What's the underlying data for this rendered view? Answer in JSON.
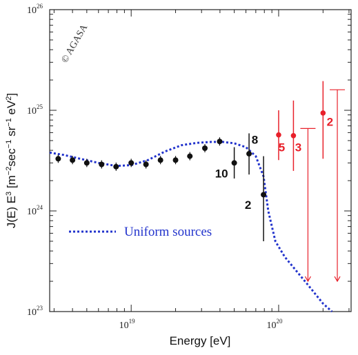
{
  "chart_data": {
    "type": "scatter",
    "title": "",
    "xlabel": "Energy [eV]",
    "ylabel_parts": [
      "J(E) E",
      "3",
      " [m",
      "−2",
      "sec",
      "−1",
      " sr",
      "−1",
      " eV",
      "2",
      "]"
    ],
    "log_x": true,
    "log_y": true,
    "xlim": [
      2.8e+18,
      3.1e+20
    ],
    "ylim": [
      1e+23,
      1e+26
    ],
    "x_ticks": [
      {
        "value": 1e+19,
        "base": "10",
        "exp": "19"
      },
      {
        "value": 1e+20,
        "base": "10",
        "exp": "20"
      }
    ],
    "y_ticks": [
      {
        "value": 1e+23,
        "base": "10",
        "exp": "23"
      },
      {
        "value": 1e+24,
        "base": "10",
        "exp": "24"
      },
      {
        "value": 1e+25,
        "base": "10",
        "exp": "25"
      },
      {
        "value": 1e+26,
        "base": "10",
        "exp": "26"
      }
    ],
    "watermark": "© AGASA",
    "legend_label": "Uniform sources",
    "colors": {
      "data": "#111111",
      "above_gzk": "#e8202a",
      "model": "#2233cc"
    },
    "series": [
      {
        "name": "",
        "color": "#111111",
        "points": [
          {
            "x": 3.2e+18,
            "y": 3.3e+24
          },
          {
            "x": 4e+18,
            "y": 3.2e+24
          },
          {
            "x": 5e+18,
            "y": 3e+24
          },
          {
            "x": 6.3e+18,
            "y": 2.9e+24
          },
          {
            "x": 7.9e+18,
            "y": 2.75e+24
          },
          {
            "x": 1e+19,
            "y": 3e+24
          },
          {
            "x": 1.26e+19,
            "y": 2.9e+24
          },
          {
            "x": 1.58e+19,
            "y": 3.2e+24
          },
          {
            "x": 2e+19,
            "y": 3.2e+24
          },
          {
            "x": 2.5e+19,
            "y": 3.5e+24
          },
          {
            "x": 3.16e+19,
            "y": 4.2e+24
          },
          {
            "x": 3.98e+19,
            "y": 4.9e+24
          },
          {
            "x": 5e+19,
            "y": 3e+24,
            "err": [
              2.1e+24,
              4.3e+24
            ]
          },
          {
            "x": 6.3e+19,
            "y": 3.7e+24,
            "err": [
              2.3e+24,
              5.9e+24
            ]
          },
          {
            "x": 7.9e+19,
            "y": 1.45e+24,
            "err": [
              5e+23,
              3.5e+24
            ]
          }
        ]
      },
      {
        "name": "",
        "color": "#e8202a",
        "points": [
          {
            "x": 1e+20,
            "y": 5.7e+24,
            "err": [
              3.2e+24,
              1e+25
            ]
          },
          {
            "x": 1.26e+20,
            "y": 5.6e+24,
            "err": [
              2.5e+24,
              1.25e+25
            ]
          },
          {
            "x": 2e+20,
            "y": 9.4e+24,
            "err": [
              3.3e+24,
              1.95e+25
            ]
          }
        ],
        "upper_limits": [
          {
            "x": 1.58e+20,
            "y": 6.6e+24,
            "to": 2e+23
          },
          {
            "x": 2.5e+20,
            "y": 1.6e+25,
            "to": 2e+23
          }
        ]
      }
    ],
    "model_curve": {
      "name": "Uniform sources",
      "style": "dashed",
      "x": [
        2.8e+18,
        3.5e+18,
        4.5e+18,
        6e+18,
        7.9e+18,
        1e+19,
        1.3e+19,
        1.7e+19,
        2.2e+19,
        2.8e+19,
        3.5e+19,
        4.2e+19,
        5e+19,
        6e+19,
        7e+19,
        7.9e+19,
        8.5e+19,
        9.5e+19,
        1.1e+20,
        1.3e+20,
        1.6e+20,
        2e+20,
        2.3e+20
      ],
      "y": [
        3.8e+24,
        3.6e+24,
        3.3e+24,
        3e+24,
        2.8e+24,
        2.85e+24,
        3.2e+24,
        3.9e+24,
        4.5e+24,
        4.75e+24,
        4.85e+24,
        4.85e+24,
        4.7e+24,
        4.3e+24,
        3.5e+24,
        2.2e+24,
        1e+24,
        5e+23,
        3.5e+23,
        2.6e+23,
        1.8e+23,
        1.2e+23,
        1e+23
      ]
    },
    "annotations": [
      {
        "text": "10",
        "x": 4.1e+19,
        "y": 2.15e+24,
        "color": "black"
      },
      {
        "text": "8",
        "x": 6.9e+19,
        "y": 4.65e+24,
        "color": "black"
      },
      {
        "text": "2",
        "x": 6.2e+19,
        "y": 1.05e+24,
        "color": "black"
      },
      {
        "text": "5",
        "x": 1.05e+20,
        "y": 3.9e+24,
        "color": "red"
      },
      {
        "text": "3",
        "x": 1.36e+20,
        "y": 3.9e+24,
        "color": "red"
      },
      {
        "text": "2",
        "x": 2.23e+20,
        "y": 7e+24,
        "color": "red"
      }
    ],
    "grid": false,
    "legend": "inside, lower-left"
  }
}
